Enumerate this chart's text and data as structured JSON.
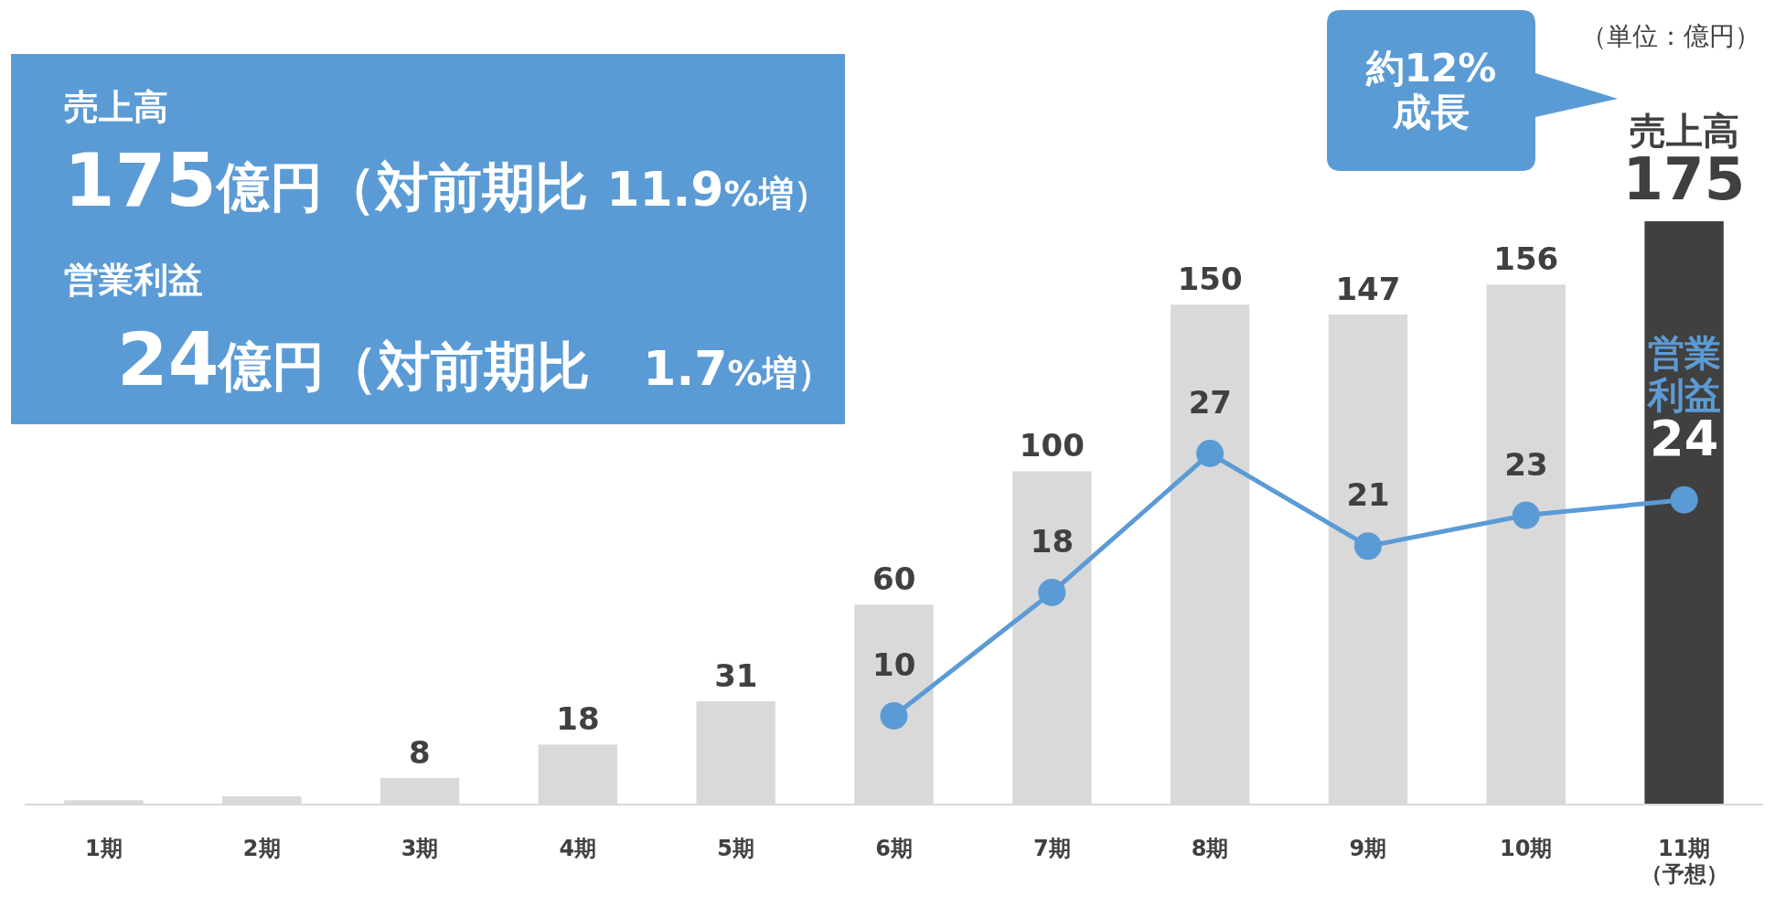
{
  "chart_data": {
    "type": "bar",
    "categories": [
      "1期",
      "2期",
      "3期",
      "4期",
      "5期",
      "6期",
      "7期",
      "8期",
      "9期",
      "10期",
      "11期（予想）"
    ],
    "tick_labels": "x",
    "marker": "circle",
    "line_style": "solid",
    "series": [
      {
        "name": "売上高",
        "colors": [
          "#d9d9d9",
          "#d9d9d9",
          "#d9d9d9",
          "#d9d9d9",
          "#d9d9d9",
          "#d9d9d9",
          "#d9d9d9",
          "#d9d9d9",
          "#d9d9d9",
          "#d9d9d9",
          "#404040"
        ],
        "values": [
          1.3,
          2.5,
          8,
          18,
          31,
          60,
          100,
          150,
          147,
          156,
          175
        ],
        "value_labels": [
          null,
          null,
          "8",
          "18",
          "31",
          "60",
          "100",
          "150",
          "147",
          "156",
          "175"
        ]
      },
      {
        "name": "営業利益",
        "type": "line",
        "axis": "y2",
        "color": "#5b9bd5",
        "values": [
          null,
          null,
          null,
          null,
          null,
          10,
          18,
          27,
          21,
          23,
          24
        ],
        "value_labels": [
          null,
          null,
          null,
          null,
          null,
          "10",
          "18",
          "27",
          "21",
          "23",
          "24"
        ]
      }
    ],
    "annotations": [
      "売上高",
      "175億円（対前期比 11.9%増）",
      "営業利益",
      "24億円（対前期比　1.7%増）",
      "（単位：億円）",
      "約12%成長"
    ]
  }
}
